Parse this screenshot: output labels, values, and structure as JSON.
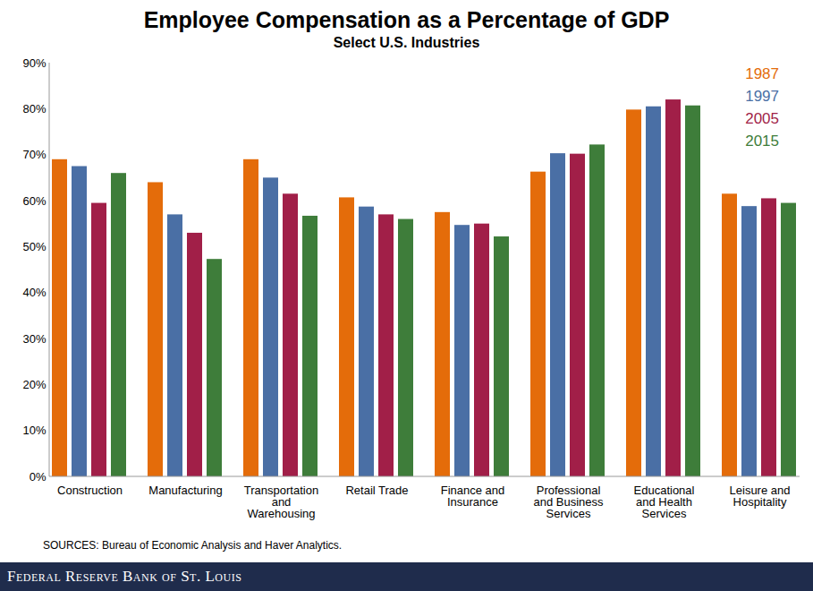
{
  "chart_data": {
    "type": "bar",
    "title": "Employee Compensation as a Percentage of GDP",
    "subtitle": "Select U.S. Industries",
    "source": "SOURCES: Bureau of Economic Analysis and Haver Analytics.",
    "footer": "Federal Reserve Bank of St. Louis",
    "categories": [
      "Construction",
      "Manufacturing",
      "Transportation and Warehousing",
      "Retail Trade",
      "Finance and Insurance",
      "Professional and Business Services",
      "Educational and Health Services",
      "Leisure and Hospitality"
    ],
    "series": [
      {
        "name": "1987",
        "color": "#e46c0a",
        "values": [
          69,
          64,
          69,
          60.7,
          57.5,
          66.3,
          79.8,
          61.5
        ]
      },
      {
        "name": "1997",
        "color": "#4a6fa5",
        "values": [
          67.5,
          57,
          65,
          58.7,
          54.7,
          70.3,
          80.5,
          58.8
        ]
      },
      {
        "name": "2005",
        "color": "#a11f48",
        "values": [
          59.5,
          53,
          61.5,
          57,
          55,
          70.2,
          82,
          60.5
        ]
      },
      {
        "name": "2015",
        "color": "#3e7d3a",
        "values": [
          66,
          47.3,
          56.7,
          56,
          52.2,
          72.2,
          80.7,
          59.5
        ]
      }
    ],
    "ylim": [
      0,
      90
    ],
    "yticks": [
      {
        "value": 0,
        "label": "0%"
      },
      {
        "value": 10,
        "label": "10%"
      },
      {
        "value": 20,
        "label": "20%"
      },
      {
        "value": 30,
        "label": "30%"
      },
      {
        "value": 40,
        "label": "40%"
      },
      {
        "value": 50,
        "label": "50%"
      },
      {
        "value": 60,
        "label": "60%"
      },
      {
        "value": 70,
        "label": "70%"
      },
      {
        "value": 80,
        "label": "80%"
      },
      {
        "value": 90,
        "label": "90%"
      }
    ],
    "grid": false,
    "legend": "top-right"
  }
}
